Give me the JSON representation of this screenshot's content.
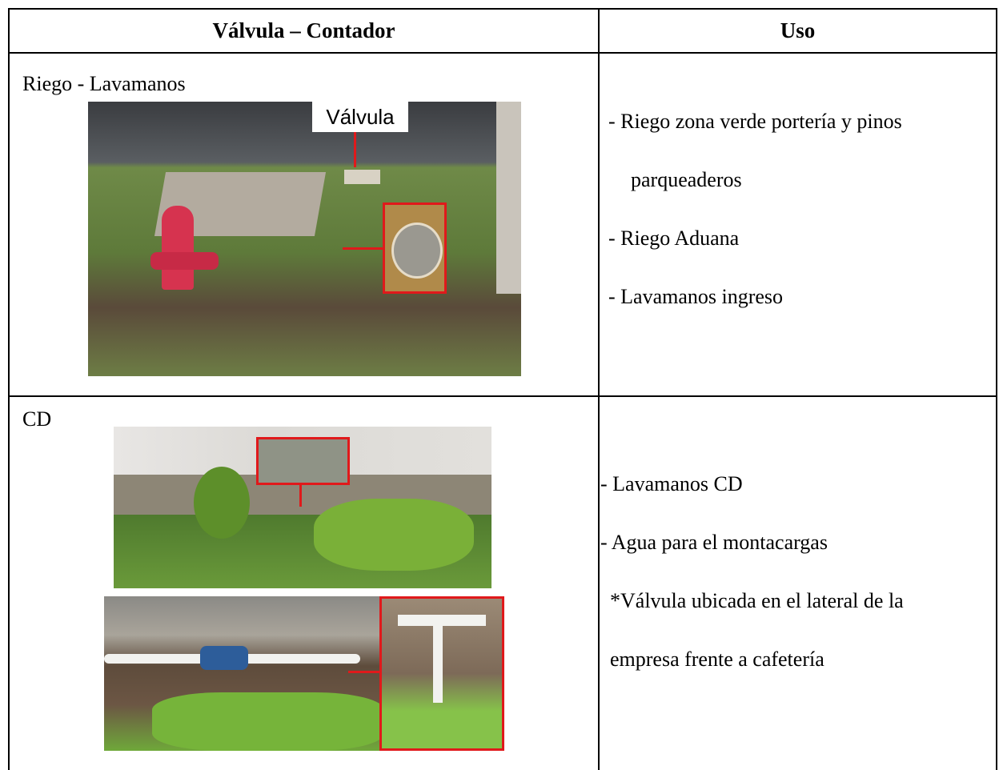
{
  "table": {
    "header": [
      "Válvula – Contador",
      "Uso"
    ],
    "rows": [
      {
        "title": "Riego - Lavamanos",
        "photo_label": "Válvula",
        "uses": [
          "- Riego zona verde portería y pinos parqueaderos",
          "- Riego Aduana",
          "- Lavamanos ingreso"
        ]
      },
      {
        "title": "CD",
        "uses": [
          "- Lavamanos CD",
          "- Agua para el montacargas"
        ],
        "note": "*Válvula ubicada en el lateral de la empresa frente a cafetería"
      }
    ]
  }
}
